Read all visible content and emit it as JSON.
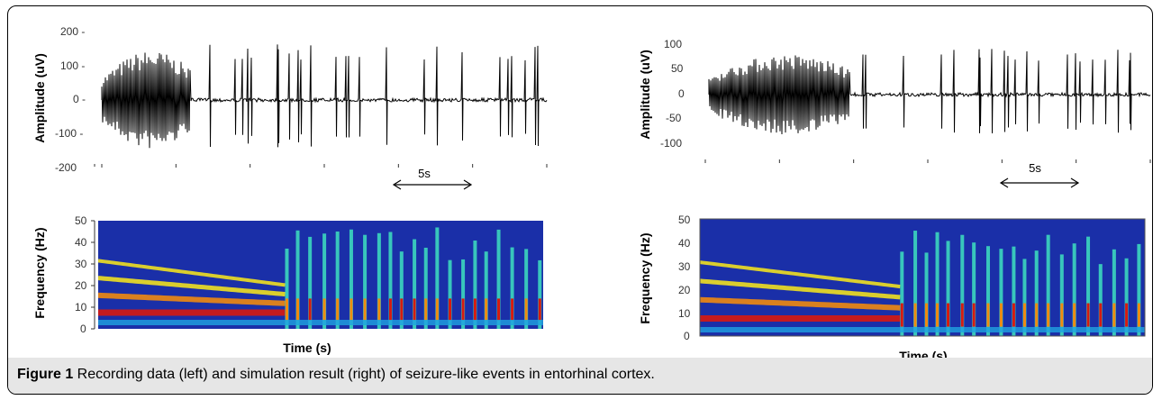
{
  "figure": {
    "caption_label": "Figure 1",
    "caption_text": " Recording data (left) and simulation result (right) of seizure-like events in entorhinal cortex."
  },
  "panels": {
    "left": {
      "amp_ylabel": "Amplitude (uV)",
      "amp_ticks": [
        "200 -",
        "100 -",
        "0 -",
        "-100 -",
        "-200"
      ],
      "scale_label": "5s",
      "freq_ylabel": "Frequency (Hz)",
      "freq_ticks": [
        "50",
        "40",
        "30",
        "20",
        "10",
        "0"
      ],
      "xlabel": "Time (s)"
    },
    "right": {
      "amp_ylabel": "Amplitude (uV)",
      "amp_ticks": [
        "100",
        "50",
        "0",
        "-50",
        "-100"
      ],
      "scale_label": "5s",
      "freq_ylabel": "Frequency (Hz)",
      "freq_ticks": [
        "50",
        "40",
        "30",
        "20",
        "10",
        "0"
      ],
      "xlabel": "Time (s)"
    }
  },
  "colors": {
    "trace": "#000000",
    "spectrogram_background": "#1a2fa8",
    "band_low": "#1fa3e0",
    "band_mid": "#f0e020",
    "band_high": "#d81a10"
  }
}
